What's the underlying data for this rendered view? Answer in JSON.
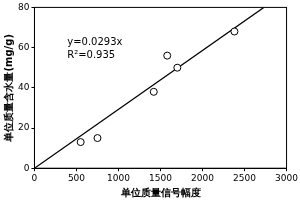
{
  "chart_data": {
    "type": "scatter",
    "x_label": "单位质量信号幅度",
    "y_label": "单位质量含水量(mg/g)",
    "annotations": [
      "y=0.0293x",
      "R²=0.935"
    ],
    "series": [
      {
        "type": "scatter",
        "marker": "circle",
        "color": "#000000",
        "x": [
          550,
          750,
          1420,
          1580,
          1700,
          2380
        ],
        "values": [
          13,
          15,
          38,
          56,
          50,
          68
        ]
      },
      {
        "type": "line",
        "line_style": "solid",
        "color": "#000000",
        "x": [
          0,
          2730
        ],
        "values": [
          0,
          80
        ]
      }
    ],
    "xlim": [
      0,
      3000
    ],
    "xticks": [
      0,
      500,
      1000,
      1500,
      2000,
      2500,
      3000
    ],
    "ylim": [
      0,
      80
    ],
    "yticks": [
      0,
      20,
      40,
      60,
      80
    ],
    "grid": false
  }
}
